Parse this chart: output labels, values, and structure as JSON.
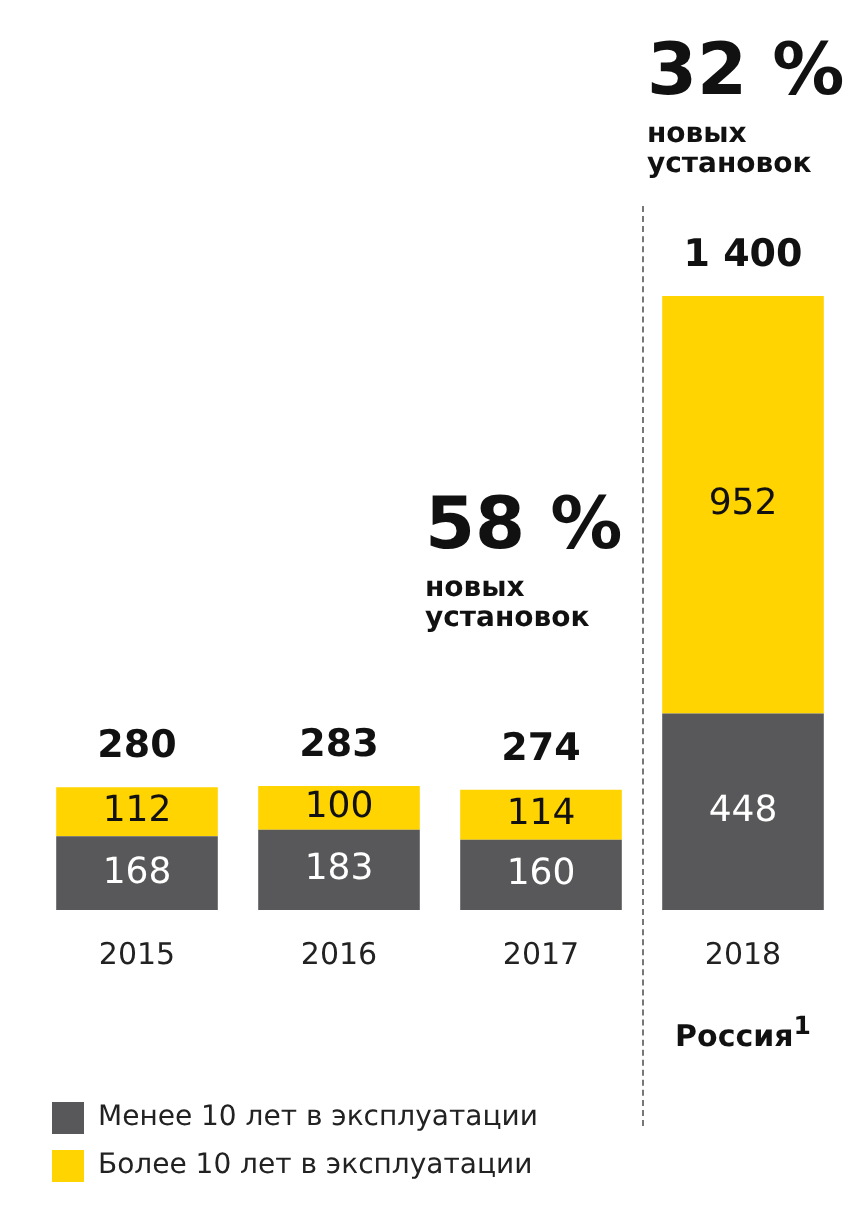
{
  "chart_data": {
    "type": "bar",
    "stacked": true,
    "categories": [
      "2015",
      "2016",
      "2017",
      "2018"
    ],
    "series": [
      {
        "name": "Менее 10 лет в эксплуатации",
        "color": "#58585a",
        "values": [
          168,
          183,
          160,
          448
        ]
      },
      {
        "name": "Более 10 лет в эксплуатации",
        "color": "#ffd400",
        "values": [
          112,
          100,
          114,
          952
        ]
      }
    ],
    "totals": [
      "280",
      "283",
      "274",
      "1 400"
    ],
    "data_labels": true,
    "legend": "bottom left",
    "annotations": [
      "58 %\nновых\nустановок",
      "32 %\nновых\nустановок",
      "Россия$^{1}$"
    ]
  }
}
